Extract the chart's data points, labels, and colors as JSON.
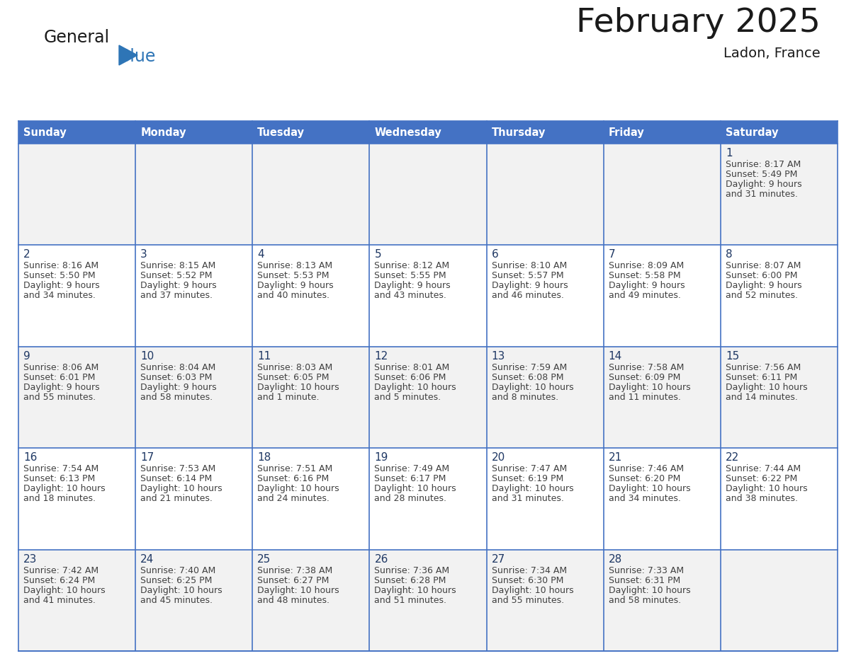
{
  "title": "February 2025",
  "subtitle": "Ladon, France",
  "days_of_week": [
    "Sunday",
    "Monday",
    "Tuesday",
    "Wednesday",
    "Thursday",
    "Friday",
    "Saturday"
  ],
  "header_bg": "#4472C4",
  "header_text_color": "#FFFFFF",
  "row_bg": [
    "#F2F2F2",
    "#FFFFFF",
    "#F2F2F2",
    "#FFFFFF",
    "#F2F2F2"
  ],
  "border_color": "#4472C4",
  "day_num_color": "#1F3864",
  "text_color": "#404040",
  "title_color": "#1a1a1a",
  "logo_general_color": "#1a1a1a",
  "logo_blue_color": "#2E75B6",
  "logo_triangle_color": "#2E75B6",
  "calendar_data": [
    [
      null,
      null,
      null,
      null,
      null,
      null,
      {
        "day": 1,
        "sunrise": "8:17 AM",
        "sunset": "5:49 PM",
        "daylight": "9 hours\nand 31 minutes."
      }
    ],
    [
      {
        "day": 2,
        "sunrise": "8:16 AM",
        "sunset": "5:50 PM",
        "daylight": "9 hours\nand 34 minutes."
      },
      {
        "day": 3,
        "sunrise": "8:15 AM",
        "sunset": "5:52 PM",
        "daylight": "9 hours\nand 37 minutes."
      },
      {
        "day": 4,
        "sunrise": "8:13 AM",
        "sunset": "5:53 PM",
        "daylight": "9 hours\nand 40 minutes."
      },
      {
        "day": 5,
        "sunrise": "8:12 AM",
        "sunset": "5:55 PM",
        "daylight": "9 hours\nand 43 minutes."
      },
      {
        "day": 6,
        "sunrise": "8:10 AM",
        "sunset": "5:57 PM",
        "daylight": "9 hours\nand 46 minutes."
      },
      {
        "day": 7,
        "sunrise": "8:09 AM",
        "sunset": "5:58 PM",
        "daylight": "9 hours\nand 49 minutes."
      },
      {
        "day": 8,
        "sunrise": "8:07 AM",
        "sunset": "6:00 PM",
        "daylight": "9 hours\nand 52 minutes."
      }
    ],
    [
      {
        "day": 9,
        "sunrise": "8:06 AM",
        "sunset": "6:01 PM",
        "daylight": "9 hours\nand 55 minutes."
      },
      {
        "day": 10,
        "sunrise": "8:04 AM",
        "sunset": "6:03 PM",
        "daylight": "9 hours\nand 58 minutes."
      },
      {
        "day": 11,
        "sunrise": "8:03 AM",
        "sunset": "6:05 PM",
        "daylight": "10 hours\nand 1 minute."
      },
      {
        "day": 12,
        "sunrise": "8:01 AM",
        "sunset": "6:06 PM",
        "daylight": "10 hours\nand 5 minutes."
      },
      {
        "day": 13,
        "sunrise": "7:59 AM",
        "sunset": "6:08 PM",
        "daylight": "10 hours\nand 8 minutes."
      },
      {
        "day": 14,
        "sunrise": "7:58 AM",
        "sunset": "6:09 PM",
        "daylight": "10 hours\nand 11 minutes."
      },
      {
        "day": 15,
        "sunrise": "7:56 AM",
        "sunset": "6:11 PM",
        "daylight": "10 hours\nand 14 minutes."
      }
    ],
    [
      {
        "day": 16,
        "sunrise": "7:54 AM",
        "sunset": "6:13 PM",
        "daylight": "10 hours\nand 18 minutes."
      },
      {
        "day": 17,
        "sunrise": "7:53 AM",
        "sunset": "6:14 PM",
        "daylight": "10 hours\nand 21 minutes."
      },
      {
        "day": 18,
        "sunrise": "7:51 AM",
        "sunset": "6:16 PM",
        "daylight": "10 hours\nand 24 minutes."
      },
      {
        "day": 19,
        "sunrise": "7:49 AM",
        "sunset": "6:17 PM",
        "daylight": "10 hours\nand 28 minutes."
      },
      {
        "day": 20,
        "sunrise": "7:47 AM",
        "sunset": "6:19 PM",
        "daylight": "10 hours\nand 31 minutes."
      },
      {
        "day": 21,
        "sunrise": "7:46 AM",
        "sunset": "6:20 PM",
        "daylight": "10 hours\nand 34 minutes."
      },
      {
        "day": 22,
        "sunrise": "7:44 AM",
        "sunset": "6:22 PM",
        "daylight": "10 hours\nand 38 minutes."
      }
    ],
    [
      {
        "day": 23,
        "sunrise": "7:42 AM",
        "sunset": "6:24 PM",
        "daylight": "10 hours\nand 41 minutes."
      },
      {
        "day": 24,
        "sunrise": "7:40 AM",
        "sunset": "6:25 PM",
        "daylight": "10 hours\nand 45 minutes."
      },
      {
        "day": 25,
        "sunrise": "7:38 AM",
        "sunset": "6:27 PM",
        "daylight": "10 hours\nand 48 minutes."
      },
      {
        "day": 26,
        "sunrise": "7:36 AM",
        "sunset": "6:28 PM",
        "daylight": "10 hours\nand 51 minutes."
      },
      {
        "day": 27,
        "sunrise": "7:34 AM",
        "sunset": "6:30 PM",
        "daylight": "10 hours\nand 55 minutes."
      },
      {
        "day": 28,
        "sunrise": "7:33 AM",
        "sunset": "6:31 PM",
        "daylight": "10 hours\nand 58 minutes."
      },
      null
    ]
  ],
  "figsize": [
    11.88,
    9.18
  ],
  "dpi": 100
}
